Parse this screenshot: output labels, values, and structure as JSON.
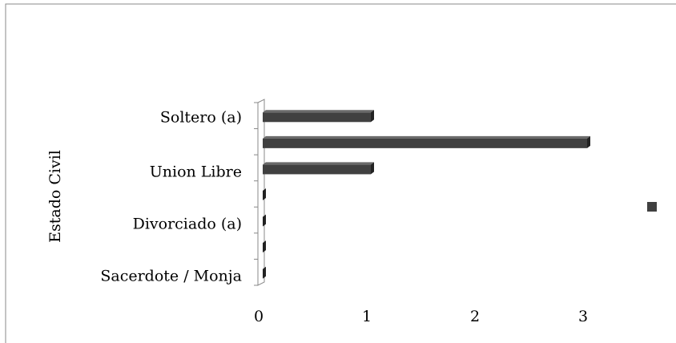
{
  "chart_data": {
    "type": "bar",
    "orientation": "horizontal",
    "y_label": "Estado Civil",
    "categories": [
      "Soltero (a)",
      null,
      "Union Libre",
      null,
      "Divorciado  (a)",
      null,
      "Sacerdote / Monja"
    ],
    "values": [
      1,
      3,
      1,
      0,
      0,
      0,
      0
    ],
    "color": "#404040",
    "xlim": [
      0,
      3
    ],
    "xticks": [
      0,
      1,
      2,
      3
    ],
    "grid": false,
    "legend": "right"
  }
}
